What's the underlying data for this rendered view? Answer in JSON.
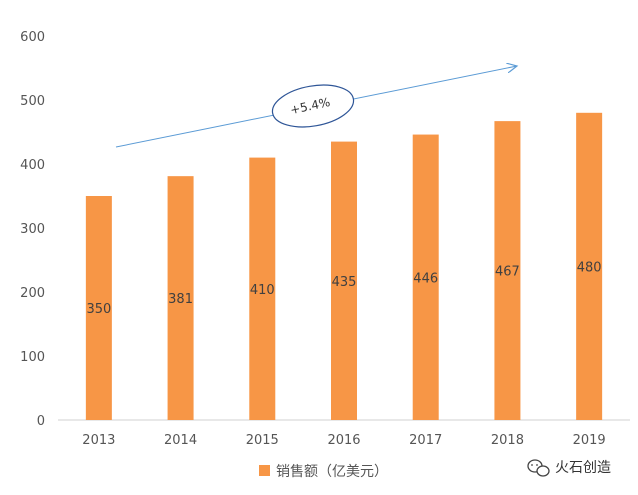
{
  "chart_data": {
    "type": "bar",
    "categories": [
      "2013",
      "2014",
      "2015",
      "2016",
      "2017",
      "2018",
      "2019"
    ],
    "series": [
      {
        "name": "销售额（亿美元）",
        "values": [
          350,
          381,
          410,
          435,
          446,
          467,
          480
        ],
        "color": "#F79646"
      }
    ],
    "ylim": [
      0,
      600
    ],
    "yticks": [
      0,
      100,
      200,
      300,
      400,
      500,
      600
    ],
    "grid": false,
    "legend_position": "bottom",
    "data_labels": true,
    "annotation": {
      "text": "+5.4%",
      "arrow_color": "#5B9BD5"
    }
  },
  "watermark": {
    "text": "火石创造"
  }
}
